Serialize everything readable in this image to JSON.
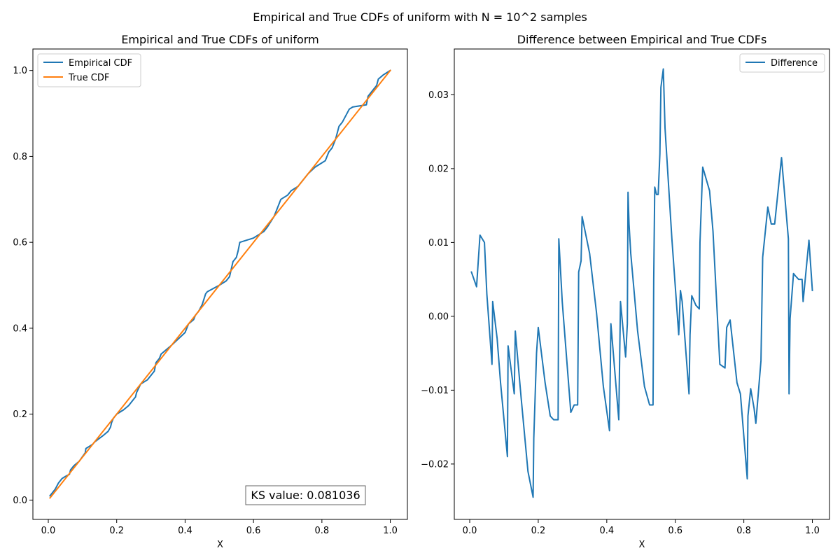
{
  "figure_title": "Empirical and True CDFs of uniform with N = 10^2 samples",
  "chart_data": [
    {
      "type": "line",
      "title": "Empirical and True CDFs of uniform",
      "xlabel": "X",
      "ylabel": "",
      "xlim": [
        -0.045,
        1.05
      ],
      "ylim": [
        -0.045,
        1.05
      ],
      "xticks": [
        0.0,
        0.2,
        0.4,
        0.6,
        0.8,
        1.0
      ],
      "yticks": [
        0.0,
        0.2,
        0.4,
        0.6,
        0.8,
        1.0
      ],
      "xtick_labels": [
        "0.0",
        "0.2",
        "0.4",
        "0.6",
        "0.8",
        "1.0"
      ],
      "ytick_labels": [
        "0.0",
        "0.2",
        "0.4",
        "0.6",
        "0.8",
        "1.0"
      ],
      "grid": false,
      "legend": "top-left",
      "annotation": "KS value: 0.081036",
      "series": [
        {
          "name": "Empirical CDF",
          "color": "#1f77b4",
          "x": [
            0.005,
            0.02,
            0.03,
            0.04,
            0.05,
            0.062,
            0.065,
            0.075,
            0.09,
            0.108,
            0.11,
            0.12,
            0.13,
            0.135,
            0.16,
            0.175,
            0.182,
            0.185,
            0.19,
            0.2,
            0.22,
            0.235,
            0.25,
            0.255,
            0.258,
            0.27,
            0.29,
            0.31,
            0.315,
            0.325,
            0.33,
            0.36,
            0.38,
            0.4,
            0.405,
            0.41,
            0.425,
            0.43,
            0.44,
            0.45,
            0.46,
            0.465,
            0.5,
            0.52,
            0.53,
            0.54,
            0.55,
            0.555,
            0.56,
            0.6,
            0.61,
            0.62,
            0.63,
            0.64,
            0.66,
            0.67,
            0.68,
            0.7,
            0.71,
            0.73,
            0.74,
            0.76,
            0.78,
            0.8,
            0.81,
            0.82,
            0.83,
            0.84,
            0.85,
            0.86,
            0.88,
            0.89,
            0.93,
            0.935,
            0.95,
            0.96,
            0.965,
            0.98,
            0.99,
            1.0
          ],
          "y": [
            0.01,
            0.025,
            0.04,
            0.05,
            0.055,
            0.06,
            0.07,
            0.08,
            0.09,
            0.11,
            0.12,
            0.125,
            0.13,
            0.135,
            0.15,
            0.16,
            0.17,
            0.18,
            0.19,
            0.2,
            0.21,
            0.22,
            0.235,
            0.24,
            0.25,
            0.27,
            0.28,
            0.3,
            0.32,
            0.33,
            0.34,
            0.36,
            0.375,
            0.39,
            0.4,
            0.41,
            0.42,
            0.43,
            0.44,
            0.455,
            0.48,
            0.485,
            0.5,
            0.51,
            0.52,
            0.555,
            0.565,
            0.58,
            0.6,
            0.61,
            0.615,
            0.62,
            0.625,
            0.635,
            0.66,
            0.68,
            0.7,
            0.71,
            0.72,
            0.73,
            0.74,
            0.76,
            0.775,
            0.785,
            0.79,
            0.81,
            0.82,
            0.84,
            0.87,
            0.88,
            0.91,
            0.915,
            0.92,
            0.94,
            0.955,
            0.965,
            0.98,
            0.99,
            0.995,
            1.0
          ]
        },
        {
          "name": "True CDF",
          "color": "#ff7f0e",
          "x": [
            0.005,
            1.0
          ],
          "y": [
            0.005,
            1.0
          ]
        }
      ]
    },
    {
      "type": "line",
      "title": "Difference between Empirical and True CDFs",
      "xlabel": "X",
      "ylabel": "",
      "xlim": [
        -0.045,
        1.05
      ],
      "ylim": [
        -0.0275,
        0.0362
      ],
      "xticks": [
        0.0,
        0.2,
        0.4,
        0.6,
        0.8,
        1.0
      ],
      "yticks": [
        -0.02,
        -0.01,
        0.0,
        0.01,
        0.02,
        0.03
      ],
      "xtick_labels": [
        "0.0",
        "0.2",
        "0.4",
        "0.6",
        "0.8",
        "1.0"
      ],
      "ytick_labels": [
        "−0.02",
        "−0.01",
        "0.00",
        "0.01",
        "0.02",
        "0.03"
      ],
      "grid": false,
      "legend": "top-right",
      "series": [
        {
          "name": "Difference",
          "color": "#1f77b4",
          "x": [
            0.005,
            0.02,
            0.03,
            0.043,
            0.05,
            0.065,
            0.067,
            0.08,
            0.09,
            0.11,
            0.112,
            0.13,
            0.133,
            0.15,
            0.17,
            0.185,
            0.187,
            0.195,
            0.2,
            0.22,
            0.235,
            0.245,
            0.258,
            0.26,
            0.27,
            0.295,
            0.305,
            0.315,
            0.318,
            0.325,
            0.328,
            0.35,
            0.37,
            0.39,
            0.408,
            0.412,
            0.42,
            0.435,
            0.44,
            0.455,
            0.46,
            0.462,
            0.465,
            0.47,
            0.49,
            0.51,
            0.525,
            0.535,
            0.537,
            0.54,
            0.545,
            0.55,
            0.555,
            0.558,
            0.565,
            0.57,
            0.59,
            0.61,
            0.615,
            0.62,
            0.64,
            0.643,
            0.648,
            0.66,
            0.67,
            0.672,
            0.68,
            0.7,
            0.71,
            0.73,
            0.745,
            0.75,
            0.76,
            0.78,
            0.79,
            0.81,
            0.812,
            0.82,
            0.83,
            0.835,
            0.85,
            0.855,
            0.87,
            0.88,
            0.89,
            0.91,
            0.93,
            0.932,
            0.935,
            0.945,
            0.95,
            0.96,
            0.97,
            0.973,
            0.99,
            1.0
          ],
          "y": [
            0.006,
            0.004,
            0.011,
            0.01,
            0.003,
            -0.0065,
            0.002,
            -0.003,
            -0.009,
            -0.019,
            -0.004,
            -0.0105,
            -0.002,
            -0.011,
            -0.021,
            -0.0245,
            -0.0165,
            -0.005,
            -0.0015,
            -0.009,
            -0.0135,
            -0.014,
            -0.014,
            0.0105,
            0.002,
            -0.013,
            -0.012,
            -0.012,
            0.006,
            0.0075,
            0.0135,
            0.0085,
            0.0005,
            -0.0095,
            -0.0155,
            -0.001,
            -0.0055,
            -0.014,
            0.002,
            -0.0055,
            -0.001,
            0.0168,
            0.0125,
            0.0085,
            -0.002,
            -0.0095,
            -0.012,
            -0.012,
            0.005,
            0.0175,
            0.0165,
            0.0165,
            0.022,
            0.031,
            0.0335,
            0.0255,
            0.0105,
            -0.0025,
            0.0035,
            0.002,
            -0.0105,
            -0.0025,
            0.0028,
            0.0015,
            0.001,
            0.01,
            0.0202,
            0.017,
            0.0115,
            -0.0065,
            -0.007,
            -0.0015,
            -0.0005,
            -0.009,
            -0.0105,
            -0.022,
            -0.0135,
            -0.0098,
            -0.0125,
            -0.0145,
            -0.006,
            0.008,
            0.0148,
            0.0125,
            0.0125,
            0.0215,
            0.0105,
            -0.0105,
            -0.0003,
            0.0058,
            0.0055,
            0.005,
            0.005,
            0.002,
            0.0103,
            0.0035
          ]
        }
      ]
    }
  ]
}
